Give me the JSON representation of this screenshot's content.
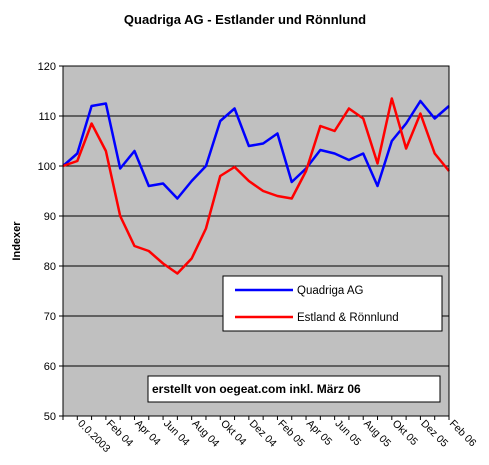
{
  "chart_data": {
    "type": "line",
    "title": "Quadriga AG - Estlander und Rönnlund",
    "ylabel": "Indexer",
    "xlabel": "",
    "ylim": [
      50,
      120
    ],
    "yticks": [
      50,
      60,
      70,
      80,
      90,
      100,
      110,
      120
    ],
    "grid": true,
    "plot_background": "#c0c0c0",
    "legend_position": "lower-right",
    "x_tick_labels": [
      "0.0.2003",
      "Feb 04",
      "Apr 04",
      "Jun 04",
      "Aug 04",
      "Okt 04",
      "Dez 04",
      "Feb 05",
      "Apr 05",
      "Jun 05",
      "Aug 05",
      "Okt 05",
      "Dez 05",
      "Feb 06"
    ],
    "series": [
      {
        "name": "Quadriga AG",
        "color": "#0000ff",
        "values": [
          100,
          102.5,
          112,
          112.5,
          99.5,
          103,
          96,
          96.5,
          93.5,
          97,
          100,
          109,
          111.5,
          104,
          104.5,
          106.5,
          96.8,
          99.5,
          103.2,
          102.5,
          101.2,
          102.5,
          96,
          105,
          108.5,
          113,
          109.5,
          112
        ]
      },
      {
        "name": "Estland & Rönnlund",
        "color": "#ff0000",
        "values": [
          100,
          101,
          108.5,
          103,
          90,
          84,
          83,
          80.5,
          78.5,
          81.5,
          87.5,
          98,
          99.8,
          97,
          95,
          94,
          93.5,
          99,
          108,
          107,
          111.5,
          109.5,
          100.5,
          113.5,
          103.5,
          110.5,
          102.5,
          99
        ]
      }
    ],
    "annotation": "erstellt von oegeat.com inkl. März 06"
  }
}
